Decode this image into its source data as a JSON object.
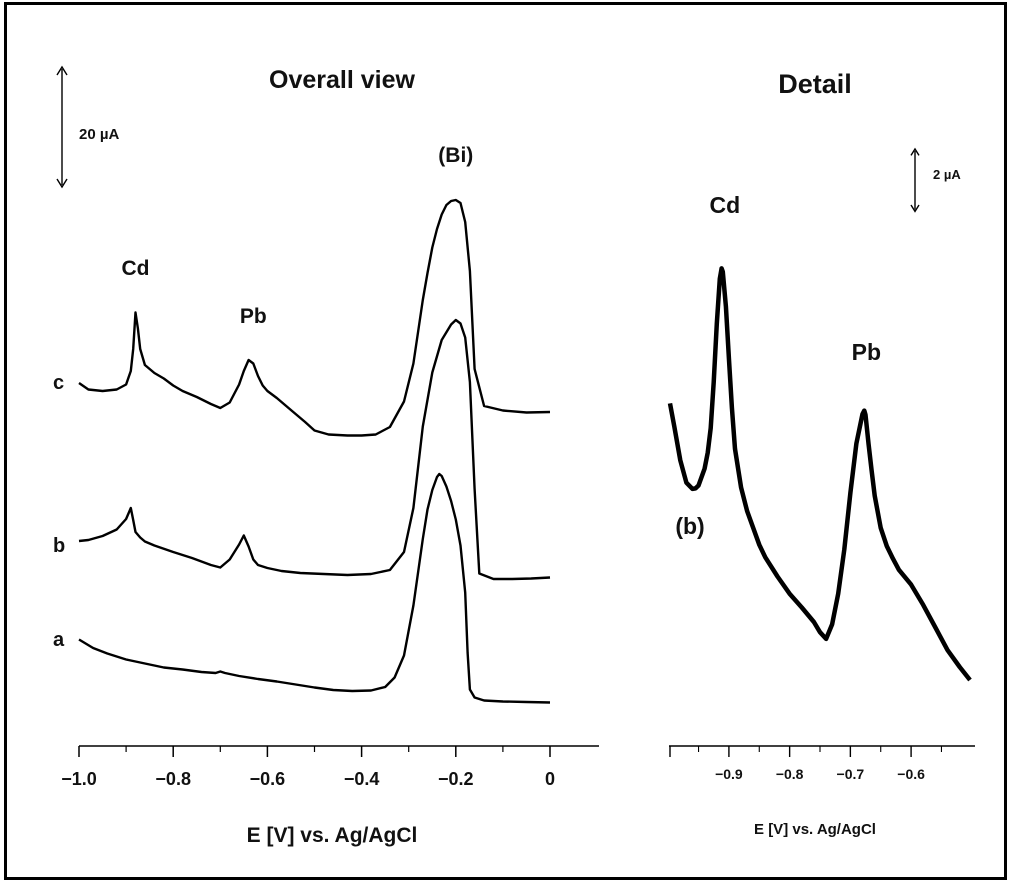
{
  "chart_data": [
    {
      "type": "line",
      "title": "Overall view",
      "xlabel": "E [V] vs. Ag/AgCl",
      "ylabel": "",
      "xlim": [
        -1.0,
        0.0
      ],
      "xticks": [
        -1.0,
        -0.8,
        -0.6,
        -0.4,
        -0.2,
        0
      ],
      "xtick_labels": [
        "−1.0",
        "−0.8",
        "−0.6",
        "−0.4",
        "−0.2",
        "0"
      ],
      "scale_bar": "20 µA",
      "scale_bar_ua": 20,
      "peak_labels": [
        {
          "text": "Cd",
          "x": -0.88
        },
        {
          "text": "Pb",
          "x": -0.63
        },
        {
          "text": "(Bi)",
          "x": -0.2
        }
      ],
      "series": [
        {
          "name": "c",
          "x": [
            -1.0,
            -0.98,
            -0.95,
            -0.92,
            -0.9,
            -0.89,
            -0.885,
            -0.88,
            -0.875,
            -0.87,
            -0.86,
            -0.84,
            -0.82,
            -0.8,
            -0.78,
            -0.75,
            -0.72,
            -0.7,
            -0.68,
            -0.66,
            -0.65,
            -0.64,
            -0.63,
            -0.62,
            -0.61,
            -0.6,
            -0.58,
            -0.55,
            -0.52,
            -0.5,
            -0.47,
            -0.43,
            -0.4,
            -0.37,
            -0.34,
            -0.31,
            -0.29,
            -0.27,
            -0.26,
            -0.25,
            -0.24,
            -0.23,
            -0.22,
            -0.21,
            -0.2,
            -0.19,
            -0.18,
            -0.17,
            -0.16,
            -0.14,
            -0.1,
            -0.05,
            0.0
          ],
          "y": [
            45.8,
            44.5,
            44.2,
            44.5,
            45.5,
            48.2,
            52.6,
            59.9,
            56.7,
            52.6,
            49.4,
            47.8,
            46.7,
            45.3,
            44.2,
            43.0,
            41.6,
            40.8,
            41.9,
            45.5,
            48.2,
            50.4,
            49.7,
            47.2,
            45.3,
            44.2,
            42.8,
            40.4,
            38.0,
            36.3,
            35.5,
            35.3,
            35.3,
            35.5,
            37.0,
            42.1,
            49.7,
            62.4,
            67.8,
            72.9,
            76.6,
            79.5,
            81.4,
            82.2,
            82.4,
            81.8,
            78.0,
            68.2,
            48.6,
            41.2,
            40.3,
            39.9,
            40.0
          ]
        },
        {
          "name": "b",
          "x": [
            -1.0,
            -0.98,
            -0.95,
            -0.92,
            -0.9,
            -0.89,
            -0.885,
            -0.88,
            -0.87,
            -0.86,
            -0.84,
            -0.8,
            -0.76,
            -0.72,
            -0.7,
            -0.68,
            -0.66,
            -0.65,
            -0.64,
            -0.63,
            -0.62,
            -0.6,
            -0.57,
            -0.53,
            -0.48,
            -0.43,
            -0.38,
            -0.34,
            -0.31,
            -0.29,
            -0.27,
            -0.25,
            -0.23,
            -0.21,
            -0.2,
            -0.19,
            -0.18,
            -0.17,
            -0.16,
            -0.15,
            -0.12,
            -0.08,
            -0.04,
            0.0
          ],
          "y": [
            22.4,
            22.6,
            23.4,
            24.7,
            26.8,
            29.0,
            26.6,
            24.2,
            23.1,
            22.3,
            21.5,
            20.2,
            19.0,
            17.6,
            17.1,
            18.7,
            21.7,
            23.5,
            21.3,
            18.7,
            17.6,
            17.0,
            16.4,
            16.0,
            15.8,
            15.6,
            15.8,
            16.6,
            20.2,
            29.0,
            45.3,
            56.1,
            62.6,
            65.7,
            66.6,
            65.9,
            63.1,
            54.2,
            32.8,
            15.9,
            14.8,
            14.8,
            14.9,
            15.1
          ]
        },
        {
          "name": "a",
          "x": [
            -1.0,
            -0.97,
            -0.94,
            -0.9,
            -0.86,
            -0.82,
            -0.78,
            -0.74,
            -0.71,
            -0.7,
            -0.69,
            -0.66,
            -0.62,
            -0.58,
            -0.54,
            -0.5,
            -0.46,
            -0.42,
            -0.38,
            -0.35,
            -0.33,
            -0.31,
            -0.29,
            -0.27,
            -0.26,
            -0.25,
            -0.24,
            -0.235,
            -0.23,
            -0.22,
            -0.21,
            -0.2,
            -0.19,
            -0.18,
            -0.175,
            -0.17,
            -0.16,
            -0.14,
            -0.1,
            -0.05,
            0.0
          ],
          "y": [
            12.3,
            10.6,
            9.5,
            8.3,
            7.5,
            6.7,
            6.3,
            5.8,
            5.6,
            5.9,
            5.6,
            5.0,
            4.4,
            3.9,
            3.3,
            2.7,
            2.2,
            2.0,
            2.1,
            2.8,
            4.7,
            9.1,
            19.1,
            32.4,
            38.3,
            42.2,
            44.8,
            45.4,
            45.0,
            42.9,
            40.0,
            36.3,
            31.1,
            21.7,
            9.7,
            2.3,
            0.7,
            0.1,
            -0.1,
            -0.2,
            -0.3
          ]
        }
      ]
    },
    {
      "type": "line",
      "title": "Detail",
      "xlabel": "E [V] vs. Ag/AgCl",
      "ylabel": "",
      "xlim": [
        -0.997,
        -0.503
      ],
      "xticks": [
        -0.9,
        -0.8,
        -0.7,
        -0.6
      ],
      "xtick_labels": [
        "−0.9",
        "−0.8",
        "−0.7",
        "−0.6"
      ],
      "scale_bar": "2 µA",
      "scale_bar_ua": 2,
      "peak_labels": [
        {
          "text": "Cd",
          "x": -0.91
        },
        {
          "text": "Pb",
          "x": -0.677
        }
      ],
      "series": [
        {
          "name": "(b)",
          "x": [
            -0.997,
            -0.99,
            -0.98,
            -0.97,
            -0.96,
            -0.955,
            -0.95,
            -0.94,
            -0.935,
            -0.93,
            -0.925,
            -0.92,
            -0.915,
            -0.912,
            -0.91,
            -0.905,
            -0.9,
            -0.895,
            -0.89,
            -0.88,
            -0.87,
            -0.86,
            -0.85,
            -0.84,
            -0.82,
            -0.8,
            -0.78,
            -0.76,
            -0.75,
            -0.74,
            -0.73,
            -0.72,
            -0.71,
            -0.7,
            -0.69,
            -0.68,
            -0.677,
            -0.675,
            -0.67,
            -0.665,
            -0.66,
            -0.65,
            -0.64,
            -0.63,
            -0.62,
            -0.6,
            -0.58,
            -0.56,
            -0.54,
            -0.52,
            -0.503
          ],
          "y": [
            11.85,
            10.96,
            9.66,
            8.8,
            8.56,
            8.58,
            8.69,
            9.34,
            9.95,
            10.9,
            12.66,
            14.91,
            16.64,
            17.04,
            16.91,
            15.58,
            13.59,
            11.68,
            10.1,
            8.61,
            7.71,
            7.06,
            6.41,
            5.93,
            5.19,
            4.53,
            4.0,
            3.44,
            3.05,
            2.79,
            3.35,
            4.53,
            6.23,
            8.41,
            10.31,
            11.44,
            11.57,
            11.41,
            10.27,
            9.27,
            8.3,
            7.06,
            6.36,
            5.88,
            5.45,
            4.88,
            4.1,
            3.23,
            2.36,
            1.71,
            1.21
          ]
        }
      ]
    }
  ],
  "ui": {
    "colors": {
      "trace": "#000000",
      "text": "#111111",
      "frame": "#000000"
    }
  }
}
